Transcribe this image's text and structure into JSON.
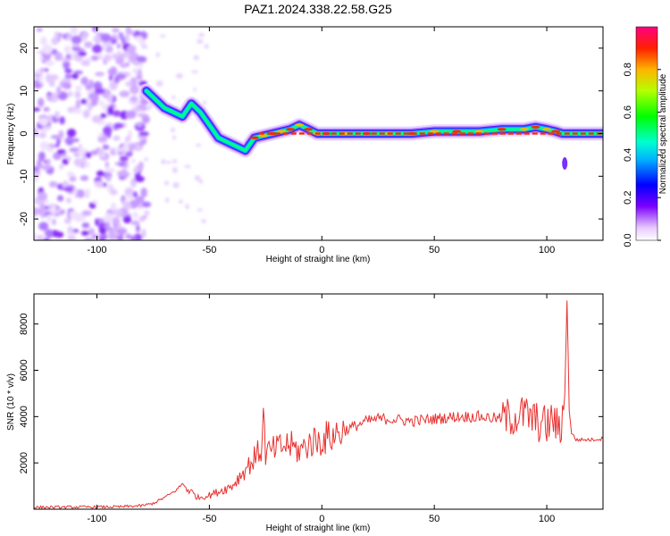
{
  "title": "PAZ1.2024.338.22.58.G25",
  "colors": {
    "snr_line": "#e8312f",
    "track_core": "#ff2a00",
    "axis": "#000000"
  },
  "chart_data": [
    {
      "type": "heatmap",
      "xlabel": "Height of straight line (km)",
      "ylabel": "Frequency (Hz)",
      "xlim": [
        -128,
        125
      ],
      "ylim": [
        -25,
        25
      ],
      "xticks": [
        "-100",
        "-50",
        "0",
        "50",
        "100"
      ],
      "xtick_values": [
        -100,
        -50,
        0,
        50,
        100
      ],
      "yticks": [
        "-20",
        "-10",
        "0",
        "10",
        "20"
      ],
      "ytick_values": [
        -20,
        -10,
        0,
        10,
        20
      ],
      "colorbar": {
        "label": "Normalized spectral amplitude",
        "range": [
          0,
          1
        ],
        "ticks": [
          "0.0",
          "0.2",
          "0.4",
          "0.6",
          "0.8"
        ],
        "tick_values": [
          0,
          0.2,
          0.4,
          0.6,
          0.8
        ]
      },
      "track": {
        "x": [
          -78,
          -74,
          -70,
          -66,
          -62,
          -58,
          -54,
          -50,
          -46,
          -42,
          -38,
          -34,
          -30,
          -26,
          -22,
          -18,
          -14,
          -10,
          -6,
          -2,
          2,
          10,
          20,
          30,
          40,
          50,
          60,
          70,
          80,
          90,
          95,
          100,
          104,
          107,
          110,
          115,
          120,
          125
        ],
        "y": [
          10,
          8,
          6,
          5,
          4,
          7,
          5,
          2,
          -1,
          -2,
          -3,
          -4,
          -1,
          -0.5,
          0,
          0.5,
          1,
          2,
          1,
          0,
          0,
          0,
          0,
          0,
          0,
          0.5,
          0.5,
          0.5,
          1,
          1,
          1.5,
          1,
          0.5,
          0,
          0,
          0,
          0,
          0
        ]
      },
      "noise_region_x": [
        -128,
        -78
      ]
    },
    {
      "type": "line",
      "xlabel": "Height of straight line (km)",
      "ylabel": "SNR (10 * v/v)",
      "xlim": [
        -128,
        125
      ],
      "ylim": [
        0,
        9300
      ],
      "xticks": [
        "-100",
        "-50",
        "0",
        "50",
        "100"
      ],
      "xtick_values": [
        -100,
        -50,
        0,
        50,
        100
      ],
      "yticks": [
        "2000",
        "4000",
        "6000",
        "8000"
      ],
      "ytick_values": [
        2000,
        4000,
        6000,
        8000
      ],
      "series": [
        {
          "x": [
            -128,
            -110,
            -90,
            -80,
            -75,
            -70,
            -65,
            -62,
            -60,
            -55,
            -50,
            -45,
            -40,
            -35,
            -30,
            -27,
            -26,
            -25,
            -20,
            -15,
            -10,
            -5,
            0,
            5,
            10,
            15,
            20,
            25,
            30,
            35,
            40,
            50,
            60,
            70,
            80,
            85,
            90,
            95,
            100,
            103,
            106,
            108,
            109,
            110,
            111,
            113,
            115,
            120,
            125
          ],
          "y": [
            80,
            90,
            100,
            150,
            250,
            500,
            800,
            1100,
            900,
            500,
            600,
            800,
            1000,
            1600,
            2200,
            2600,
            4000,
            2400,
            2600,
            2800,
            2500,
            2900,
            3000,
            3200,
            3400,
            3600,
            3800,
            3900,
            3900,
            3850,
            3800,
            3900,
            4000,
            4000,
            3900,
            4000,
            4100,
            3800,
            3600,
            3900,
            3200,
            5000,
            9000,
            4300,
            3300,
            3000,
            3000,
            3000,
            3050
          ]
        }
      ]
    }
  ]
}
